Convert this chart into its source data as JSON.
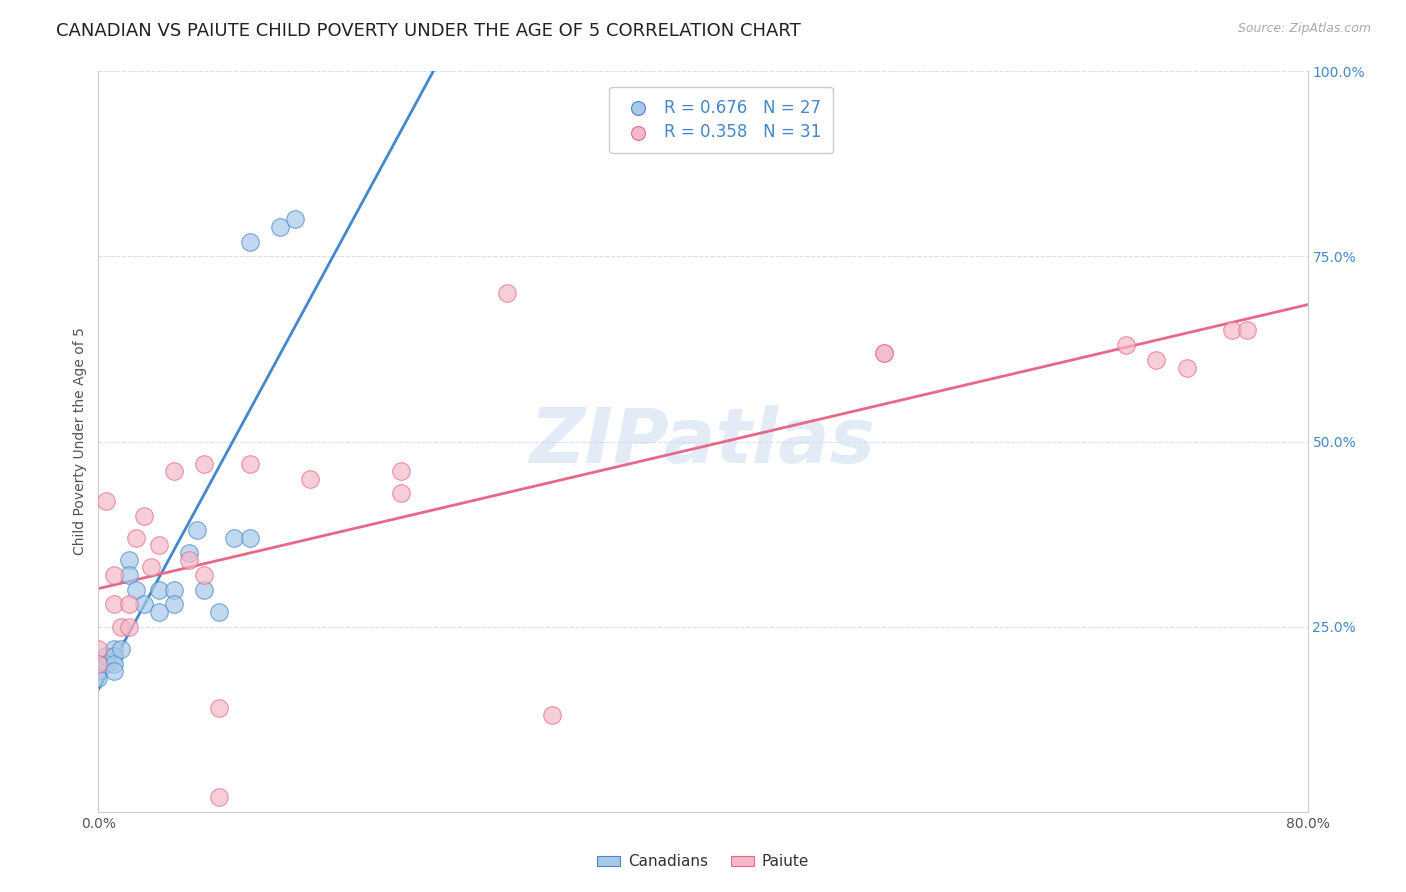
{
  "title": "CANADIAN VS PAIUTE CHILD POVERTY UNDER THE AGE OF 5 CORRELATION CHART",
  "source": "Source: ZipAtlas.com",
  "ylabel": "Child Poverty Under the Age of 5",
  "xlim": [
    0.0,
    0.8
  ],
  "ylim": [
    0.0,
    1.0
  ],
  "xtick_labels": [
    "0.0%",
    "",
    "",
    "",
    "",
    "",
    "",
    "",
    "80.0%"
  ],
  "xtick_values": [
    0.0,
    0.1,
    0.2,
    0.3,
    0.4,
    0.5,
    0.6,
    0.7,
    0.8
  ],
  "ytick_values": [
    0.0,
    0.25,
    0.5,
    0.75,
    1.0
  ],
  "ytick_labels_right": [
    "",
    "25.0%",
    "50.0%",
    "75.0%",
    "100.0%"
  ],
  "canadians_color": "#a8c8e8",
  "paiute_color": "#f4b8c8",
  "canadians_line_color": "#4488cc",
  "paiute_line_color": "#e86888",
  "canadians_R": 0.676,
  "canadians_N": 27,
  "paiute_R": 0.358,
  "paiute_N": 31,
  "legend_text_color": "#4488cc",
  "watermark": "ZIPatlas",
  "canadians_x": [
    0.0,
    0.0,
    0.0,
    0.005,
    0.005,
    0.01,
    0.01,
    0.01,
    0.01,
    0.015,
    0.02,
    0.02,
    0.025,
    0.03,
    0.04,
    0.04,
    0.05,
    0.05,
    0.06,
    0.065,
    0.07,
    0.08,
    0.09,
    0.1,
    0.1,
    0.12,
    0.13
  ],
  "canadians_y": [
    0.2,
    0.19,
    0.18,
    0.21,
    0.2,
    0.22,
    0.21,
    0.2,
    0.19,
    0.22,
    0.34,
    0.32,
    0.3,
    0.28,
    0.3,
    0.27,
    0.3,
    0.28,
    0.35,
    0.38,
    0.3,
    0.27,
    0.37,
    0.37,
    0.77,
    0.79,
    0.8
  ],
  "paiute_x": [
    0.0,
    0.0,
    0.005,
    0.01,
    0.01,
    0.015,
    0.02,
    0.02,
    0.025,
    0.03,
    0.035,
    0.04,
    0.05,
    0.06,
    0.07,
    0.07,
    0.08,
    0.08,
    0.1,
    0.14,
    0.2,
    0.2,
    0.27,
    0.3,
    0.52,
    0.52,
    0.68,
    0.7,
    0.72,
    0.75,
    0.76
  ],
  "paiute_y": [
    0.22,
    0.2,
    0.42,
    0.32,
    0.28,
    0.25,
    0.28,
    0.25,
    0.37,
    0.4,
    0.33,
    0.36,
    0.46,
    0.34,
    0.47,
    0.32,
    0.02,
    0.14,
    0.47,
    0.45,
    0.46,
    0.43,
    0.7,
    0.13,
    0.62,
    0.62,
    0.63,
    0.61,
    0.6,
    0.65,
    0.65
  ],
  "background_color": "#ffffff",
  "grid_color": "#d8e0ee",
  "title_fontsize": 13,
  "axis_label_fontsize": 10,
  "tick_fontsize": 10,
  "legend_fontsize": 12
}
